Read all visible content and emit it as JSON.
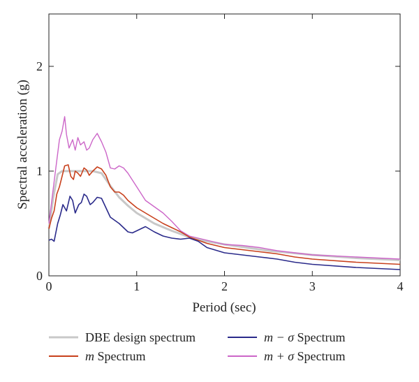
{
  "chart_data": {
    "type": "line",
    "xlabel": "Period (sec)",
    "ylabel": "Spectral acceleration (g)",
    "xlim": [
      0,
      4
    ],
    "ylim": [
      0,
      2.5
    ],
    "xticks": [
      0,
      1,
      2,
      3,
      4
    ],
    "yticks": [
      0,
      1,
      2
    ],
    "xtick_labels": [
      "0",
      "1",
      "2",
      "3",
      "4"
    ],
    "ytick_labels": [
      "0",
      "1",
      "2"
    ],
    "grid": false,
    "legend_position": "bottom",
    "series": [
      {
        "name": "DBE design spectrum",
        "color": "#c8c8c8",
        "x": [
          0,
          0.05,
          0.1,
          0.15,
          0.2,
          0.3,
          0.4,
          0.5,
          0.6,
          0.7,
          0.8,
          0.9,
          1.0,
          1.2,
          1.4,
          1.6,
          1.8,
          2.0,
          2.5,
          3.0,
          3.5,
          4.0
        ],
        "y": [
          0.45,
          0.75,
          0.97,
          1.0,
          1.0,
          1.0,
          1.0,
          1.0,
          0.98,
          0.86,
          0.75,
          0.67,
          0.6,
          0.5,
          0.43,
          0.37,
          0.33,
          0.3,
          0.24,
          0.2,
          0.17,
          0.15
        ]
      },
      {
        "name": "m Spectrum",
        "color": "#c8401c",
        "x": [
          0,
          0.03,
          0.06,
          0.09,
          0.12,
          0.15,
          0.18,
          0.22,
          0.25,
          0.28,
          0.3,
          0.33,
          0.36,
          0.4,
          0.43,
          0.46,
          0.5,
          0.55,
          0.6,
          0.65,
          0.7,
          0.75,
          0.8,
          0.85,
          0.9,
          1.0,
          1.1,
          1.2,
          1.3,
          1.4,
          1.5,
          1.6,
          1.8,
          2.0,
          2.2,
          2.4,
          2.6,
          2.8,
          3.0,
          3.5,
          4.0
        ],
        "y": [
          0.45,
          0.55,
          0.62,
          0.78,
          0.85,
          0.95,
          1.05,
          1.06,
          0.95,
          0.92,
          1.0,
          0.98,
          0.95,
          1.03,
          1.01,
          0.96,
          1.0,
          1.04,
          1.02,
          0.96,
          0.85,
          0.8,
          0.8,
          0.77,
          0.72,
          0.65,
          0.6,
          0.55,
          0.5,
          0.46,
          0.42,
          0.37,
          0.31,
          0.27,
          0.25,
          0.23,
          0.21,
          0.18,
          0.16,
          0.13,
          0.11
        ]
      },
      {
        "name": "m − σ Spectrum",
        "color": "#2a2a8a",
        "x": [
          0,
          0.03,
          0.06,
          0.1,
          0.13,
          0.16,
          0.2,
          0.24,
          0.27,
          0.3,
          0.34,
          0.37,
          0.4,
          0.43,
          0.47,
          0.5,
          0.55,
          0.6,
          0.65,
          0.7,
          0.8,
          0.9,
          0.95,
          1.0,
          1.05,
          1.1,
          1.2,
          1.3,
          1.4,
          1.5,
          1.6,
          1.7,
          1.8,
          2.0,
          2.2,
          2.4,
          2.6,
          2.8,
          3.0,
          3.5,
          4.0
        ],
        "y": [
          0.34,
          0.35,
          0.33,
          0.5,
          0.58,
          0.68,
          0.62,
          0.76,
          0.72,
          0.6,
          0.68,
          0.7,
          0.78,
          0.76,
          0.68,
          0.7,
          0.75,
          0.74,
          0.65,
          0.56,
          0.5,
          0.42,
          0.41,
          0.43,
          0.45,
          0.47,
          0.42,
          0.38,
          0.36,
          0.35,
          0.36,
          0.33,
          0.27,
          0.22,
          0.2,
          0.18,
          0.16,
          0.13,
          0.11,
          0.08,
          0.06
        ]
      },
      {
        "name": "m + σ Spectrum",
        "color": "#cc66c8",
        "x": [
          0,
          0.03,
          0.06,
          0.09,
          0.12,
          0.15,
          0.18,
          0.2,
          0.23,
          0.27,
          0.3,
          0.33,
          0.36,
          0.4,
          0.43,
          0.46,
          0.5,
          0.55,
          0.6,
          0.65,
          0.7,
          0.75,
          0.8,
          0.85,
          0.9,
          1.0,
          1.1,
          1.2,
          1.3,
          1.4,
          1.5,
          1.6,
          1.8,
          2.0,
          2.2,
          2.4,
          2.6,
          2.8,
          3.0,
          3.5,
          4.0
        ],
        "y": [
          0.5,
          0.7,
          0.9,
          1.1,
          1.3,
          1.38,
          1.52,
          1.35,
          1.22,
          1.3,
          1.2,
          1.32,
          1.25,
          1.28,
          1.2,
          1.22,
          1.3,
          1.36,
          1.28,
          1.18,
          1.03,
          1.02,
          1.05,
          1.03,
          0.98,
          0.85,
          0.72,
          0.66,
          0.6,
          0.52,
          0.43,
          0.38,
          0.34,
          0.3,
          0.29,
          0.27,
          0.24,
          0.22,
          0.2,
          0.18,
          0.16
        ]
      }
    ]
  },
  "legend": {
    "items": [
      {
        "prefix": "",
        "label": "DBE design spectrum"
      },
      {
        "prefix": "m",
        "label": " Spectrum"
      },
      {
        "prefix": "m − σ",
        "label": " Spectrum"
      },
      {
        "prefix": "m + σ",
        "label": " Spectrum"
      }
    ]
  }
}
